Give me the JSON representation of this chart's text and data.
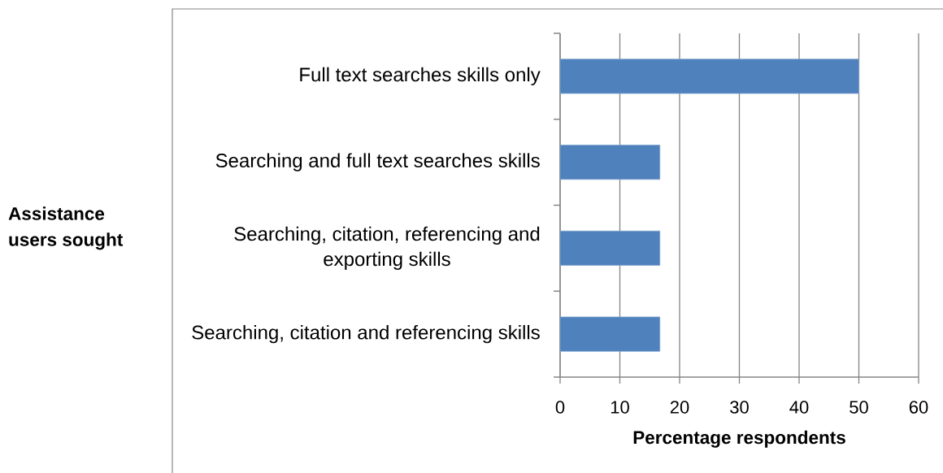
{
  "chart_data": {
    "type": "bar",
    "orientation": "horizontal",
    "categories": [
      "Full text searches skills only",
      "Searching and full text searches skills",
      "Searching, citation, referencing and exporting skills",
      "Searching, citation and referencing skills"
    ],
    "values": [
      50,
      16.7,
      16.7,
      16.7
    ],
    "color": "#4f81bd",
    "xlim": [
      0,
      60
    ],
    "xticks": [
      0,
      10,
      20,
      30,
      40,
      50,
      60
    ],
    "xlabel": "Percentage respondents",
    "ylabel": "Assistance users sought",
    "grid": "x"
  }
}
